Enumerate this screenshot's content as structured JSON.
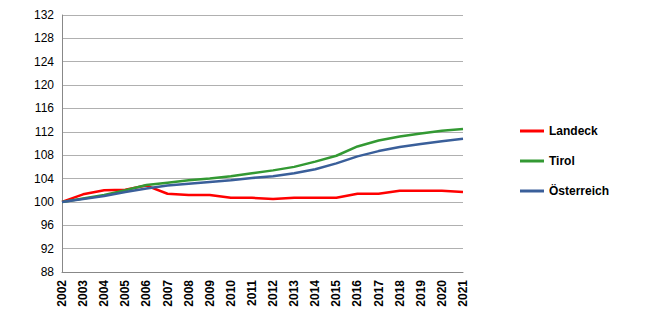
{
  "chart_data": {
    "type": "line",
    "categories": [
      "2002",
      "2003",
      "2004",
      "2005",
      "2006",
      "2007",
      "2008",
      "2009",
      "2010",
      "2011",
      "2012",
      "2013",
      "2014",
      "2015",
      "2016",
      "2017",
      "2018",
      "2019",
      "2020",
      "2021"
    ],
    "series": [
      {
        "name": "Landeck",
        "color": "#ff0000",
        "values": [
          100,
          101.3,
          102.0,
          102.1,
          102.8,
          101.4,
          101.2,
          101.2,
          100.7,
          100.7,
          100.5,
          100.7,
          100.7,
          100.7,
          101.4,
          101.4,
          101.9,
          101.9,
          101.9,
          101.7
        ]
      },
      {
        "name": "Tirol",
        "color": "#339933",
        "values": [
          100,
          100.6,
          101.2,
          102.0,
          102.9,
          103.3,
          103.7,
          104.0,
          104.4,
          104.9,
          105.4,
          106.0,
          106.9,
          107.9,
          109.5,
          110.5,
          111.2,
          111.7,
          112.2,
          112.5
        ]
      },
      {
        "name": "Österreich",
        "color": "#3a5f9a",
        "values": [
          100,
          100.5,
          101.0,
          101.7,
          102.3,
          102.8,
          103.1,
          103.4,
          103.7,
          104.1,
          104.4,
          104.9,
          105.6,
          106.6,
          107.8,
          108.7,
          109.4,
          109.9,
          110.4,
          110.8
        ]
      }
    ],
    "ylim": [
      88,
      132
    ],
    "yticks": [
      88,
      92,
      96,
      100,
      104,
      108,
      112,
      116,
      120,
      124,
      128,
      132
    ],
    "grid": true,
    "legend": "right"
  }
}
